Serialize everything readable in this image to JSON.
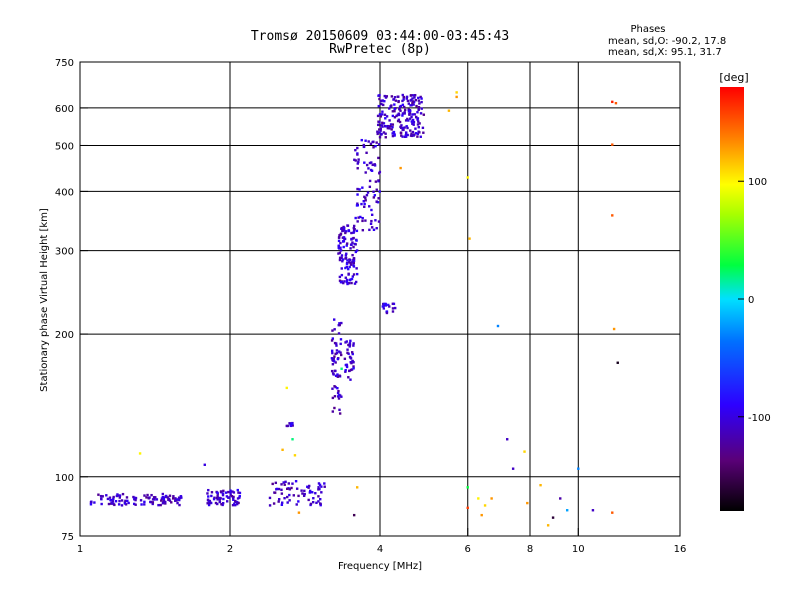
{
  "header": {
    "title": "Tromsø 20150609 03:44:00-03:45:43",
    "subtitle": "RwPretec (8p)",
    "phases_title": "Phases",
    "phases_o": "mean, sd,O: -90.2, 17.8",
    "phases_x": "mean, sd,X:  95.1, 31.7"
  },
  "chart_data": {
    "type": "scatter",
    "xlabel": "Frequency [MHz]",
    "ylabel": "Stationary phase Virtual Height [km]",
    "xscale": "log",
    "yscale": "log",
    "xlim": [
      1,
      16
    ],
    "ylim": [
      75,
      750
    ],
    "xticks": [
      1,
      2,
      4,
      6,
      8,
      10,
      16
    ],
    "yticks": [
      75,
      100,
      200,
      300,
      400,
      500,
      600,
      750
    ],
    "grid": true,
    "colorbar": {
      "label": "[deg]",
      "range": [
        -180,
        180
      ],
      "ticks": [
        100,
        0,
        -100
      ],
      "colormap": "rainbow (black-purple-blue-cyan-green-yellow-orange-red)"
    },
    "clusters": [
      {
        "desc": "E-layer trace",
        "fmin": 1.05,
        "fmax": 1.6,
        "hmin": 87,
        "hmax": 92,
        "phase": -110,
        "n": 110
      },
      {
        "desc": "E-layer trace",
        "fmin": 1.8,
        "fmax": 2.1,
        "hmin": 87,
        "hmax": 94,
        "phase": -105,
        "n": 70
      },
      {
        "desc": "E-layer trace",
        "fmin": 2.4,
        "fmax": 3.1,
        "hmin": 87,
        "hmax": 98,
        "phase": -110,
        "n": 70
      },
      {
        "desc": "Es trace",
        "fmin": 2.6,
        "fmax": 2.7,
        "hmin": 128,
        "hmax": 130,
        "phase": -100,
        "n": 12
      },
      {
        "desc": "F1 lower trace",
        "fmin": 3.2,
        "fmax": 3.35,
        "hmin": 135,
        "hmax": 215,
        "phase": -110,
        "n": 60
      },
      {
        "desc": "F1 upper trace",
        "fmin": 3.4,
        "fmax": 3.55,
        "hmin": 160,
        "hmax": 195,
        "phase": -105,
        "n": 40
      },
      {
        "desc": "F2 low",
        "fmin": 3.3,
        "fmax": 3.6,
        "hmin": 255,
        "hmax": 340,
        "phase": -105,
        "n": 120
      },
      {
        "desc": "F2 rise",
        "fmin": 3.55,
        "fmax": 4.0,
        "hmin": 330,
        "hmax": 520,
        "phase": -105,
        "n": 90
      },
      {
        "desc": "F2 top",
        "fmin": 3.95,
        "fmax": 4.9,
        "hmin": 520,
        "hmax": 640,
        "phase": -110,
        "n": 200
      },
      {
        "desc": "F2 X branch",
        "fmin": 4.05,
        "fmax": 4.3,
        "hmin": 220,
        "hmax": 232,
        "phase": -100,
        "n": 18
      }
    ],
    "scattered_points": [
      {
        "f": 1.32,
        "h": 112,
        "phase": 100
      },
      {
        "f": 1.78,
        "h": 106,
        "phase": -100
      },
      {
        "f": 2.6,
        "h": 154,
        "phase": 100
      },
      {
        "f": 2.55,
        "h": 114,
        "phase": 120
      },
      {
        "f": 2.7,
        "h": 111,
        "phase": 110
      },
      {
        "f": 2.67,
        "h": 120,
        "phase": 20
      },
      {
        "f": 2.75,
        "h": 84,
        "phase": 130
      },
      {
        "f": 3.35,
        "h": 169,
        "phase": 20
      },
      {
        "f": 3.6,
        "h": 95,
        "phase": 120
      },
      {
        "f": 3.55,
        "h": 83,
        "phase": -150
      },
      {
        "f": 4.4,
        "h": 448,
        "phase": 130
      },
      {
        "f": 5.5,
        "h": 592,
        "phase": 120
      },
      {
        "f": 5.7,
        "h": 647,
        "phase": 110
      },
      {
        "f": 5.7,
        "h": 633,
        "phase": 130
      },
      {
        "f": 6.0,
        "h": 428,
        "phase": 100
      },
      {
        "f": 6.05,
        "h": 318,
        "phase": 120
      },
      {
        "f": 6.0,
        "h": 95,
        "phase": 30
      },
      {
        "f": 6.0,
        "h": 86,
        "phase": 160
      },
      {
        "f": 6.3,
        "h": 90,
        "phase": 100
      },
      {
        "f": 6.5,
        "h": 87,
        "phase": 110
      },
      {
        "f": 6.4,
        "h": 83,
        "phase": 130
      },
      {
        "f": 6.7,
        "h": 90,
        "phase": 130
      },
      {
        "f": 6.9,
        "h": 208,
        "phase": -30
      },
      {
        "f": 7.2,
        "h": 120,
        "phase": -110
      },
      {
        "f": 7.4,
        "h": 104,
        "phase": -110
      },
      {
        "f": 7.8,
        "h": 113,
        "phase": 110
      },
      {
        "f": 7.9,
        "h": 88,
        "phase": 130
      },
      {
        "f": 8.4,
        "h": 96,
        "phase": 120
      },
      {
        "f": 8.7,
        "h": 79,
        "phase": 120
      },
      {
        "f": 8.9,
        "h": 82,
        "phase": -160
      },
      {
        "f": 9.2,
        "h": 90,
        "phase": -120
      },
      {
        "f": 9.5,
        "h": 85,
        "phase": -20
      },
      {
        "f": 10.0,
        "h": 104,
        "phase": -30
      },
      {
        "f": 10.7,
        "h": 85,
        "phase": -110
      },
      {
        "f": 11.7,
        "h": 618,
        "phase": 170
      },
      {
        "f": 11.9,
        "h": 614,
        "phase": 150
      },
      {
        "f": 11.7,
        "h": 502,
        "phase": 150
      },
      {
        "f": 11.7,
        "h": 356,
        "phase": 150
      },
      {
        "f": 11.8,
        "h": 205,
        "phase": 130
      },
      {
        "f": 12.0,
        "h": 174,
        "phase": -170
      },
      {
        "f": 11.7,
        "h": 84,
        "phase": 150
      }
    ]
  }
}
